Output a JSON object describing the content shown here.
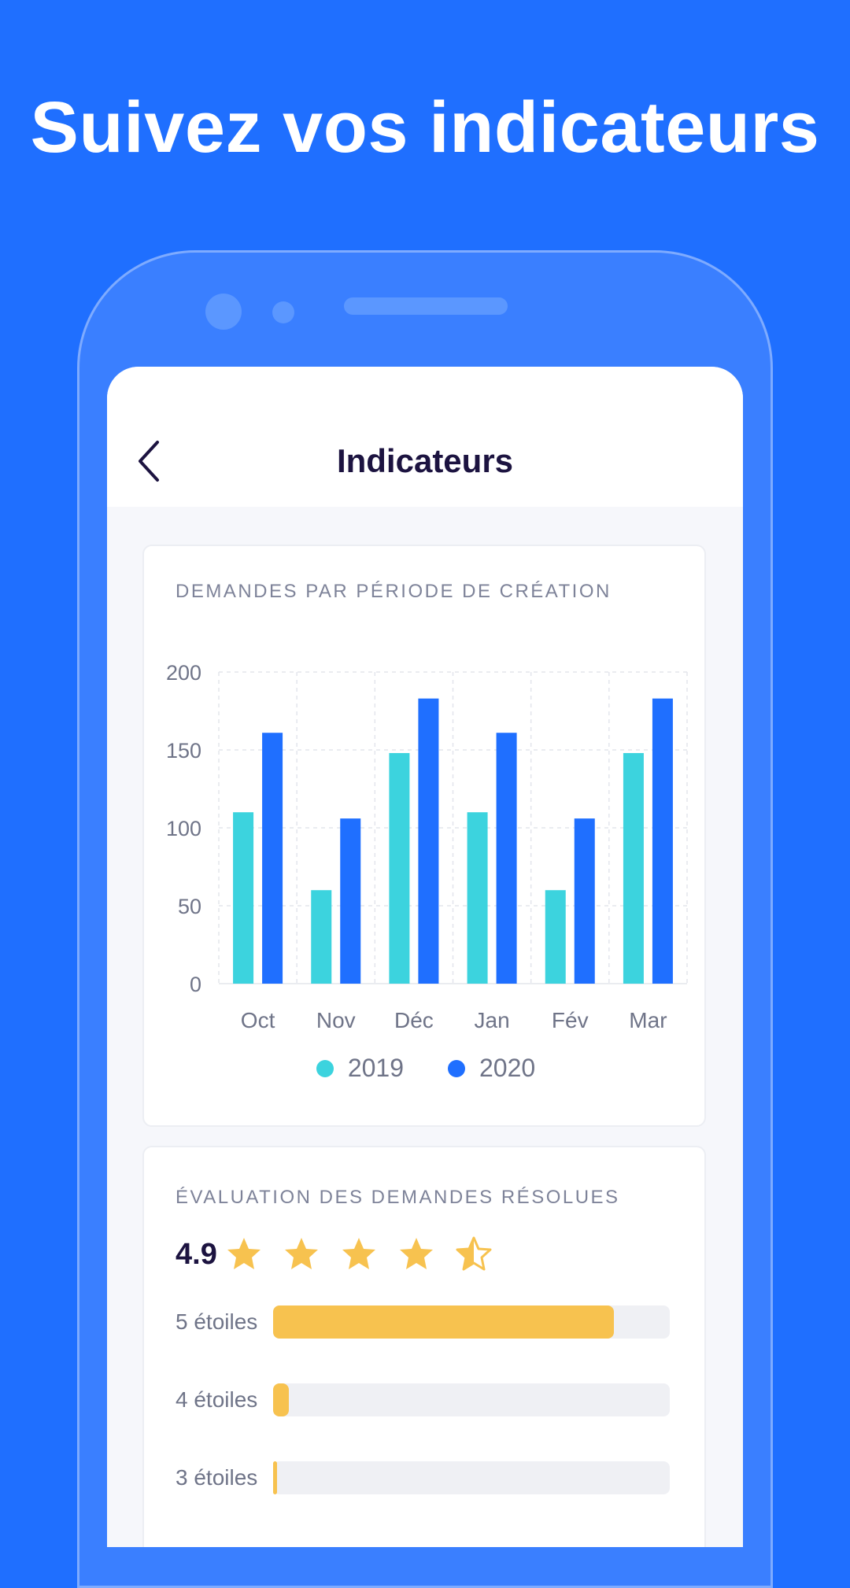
{
  "headline": "Suivez vos indicateurs",
  "colors": {
    "background": "#1F6FFF",
    "series_2019": "#3CD3DE",
    "series_2020": "#1F6FFF",
    "star": "#F7C24F"
  },
  "appbar": {
    "back_icon": "chevron-left-icon",
    "title": "Indicateurs"
  },
  "requests_card": {
    "label": "DEMANDES PAR PÉRIODE DE CRÉATION"
  },
  "chart_data": {
    "type": "bar",
    "title": "DEMANDES PAR PÉRIODE DE CRÉATION",
    "categories": [
      "Oct",
      "Nov",
      "Déc",
      "Jan",
      "Fév",
      "Mar"
    ],
    "series": [
      {
        "name": "2019",
        "values": [
          110,
          60,
          148,
          110,
          60,
          148
        ]
      },
      {
        "name": "2020",
        "values": [
          161,
          106,
          183,
          161,
          106,
          183
        ]
      }
    ],
    "y_ticks": [
      "0",
      "50",
      "100",
      "150",
      "200"
    ],
    "ylim": [
      0,
      200
    ],
    "grid": true,
    "legend": "bottom-center"
  },
  "rating_card": {
    "label": "ÉVALUATION DES DEMANDES RÉSOLUES",
    "average": "4.9",
    "stars": 4.5,
    "distribution": [
      {
        "label": "5 étoiles",
        "fraction": 0.86
      },
      {
        "label": "4 étoiles",
        "fraction": 0.04
      },
      {
        "label": "3 étoiles",
        "fraction": 0.008
      }
    ]
  }
}
